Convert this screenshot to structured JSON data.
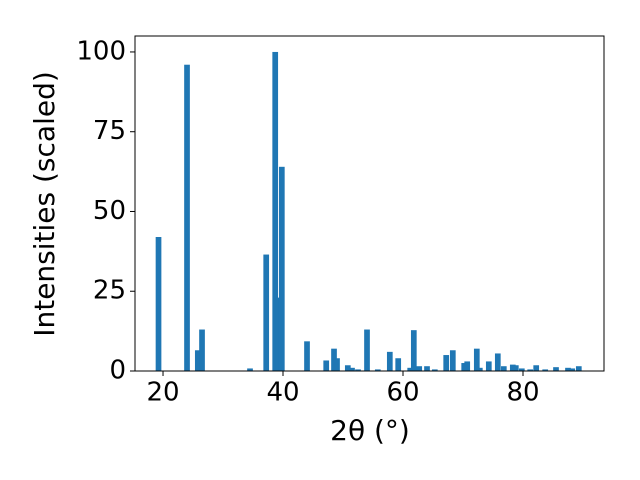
{
  "chart_data": {
    "type": "bar",
    "xlabel": "2θ (°)",
    "ylabel": "Intensities (scaled)",
    "color": "#1f77b4",
    "x": [
      19.25,
      24.0,
      25.8,
      26.5,
      34.5,
      37.2,
      38.7,
      39.2,
      39.8,
      44.0,
      47.2,
      48.5,
      49.0,
      50.8,
      51.5,
      52.5,
      54.0,
      55.8,
      57.8,
      59.2,
      61.2,
      61.8,
      62.7,
      64.0,
      65.3,
      67.2,
      68.3,
      70.2,
      70.7,
      72.3,
      72.8,
      74.3,
      75.8,
      76.8,
      78.3,
      78.8,
      79.8,
      81.2,
      82.2,
      83.7,
      85.5,
      87.5,
      88.2,
      89.3
    ],
    "values": [
      42,
      96,
      6.5,
      13,
      0.8,
      36.5,
      100,
      23,
      64,
      9.3,
      3.3,
      7,
      4,
      1.8,
      1,
      0.5,
      13,
      0.5,
      6,
      4,
      1,
      12.8,
      1.5,
      1.5,
      0.5,
      5,
      6.5,
      2.5,
      3,
      7,
      1,
      3,
      5.5,
      1.5,
      2,
      1.8,
      0.8,
      0.5,
      1.8,
      0.5,
      1.2,
      1,
      0.8,
      1.5
    ],
    "xlim": [
      15.33,
      93.5
    ],
    "xticks": [
      20,
      40,
      60,
      80
    ],
    "ylim": [
      0,
      105
    ],
    "yticks": [
      0,
      25,
      50,
      75,
      100
    ]
  }
}
